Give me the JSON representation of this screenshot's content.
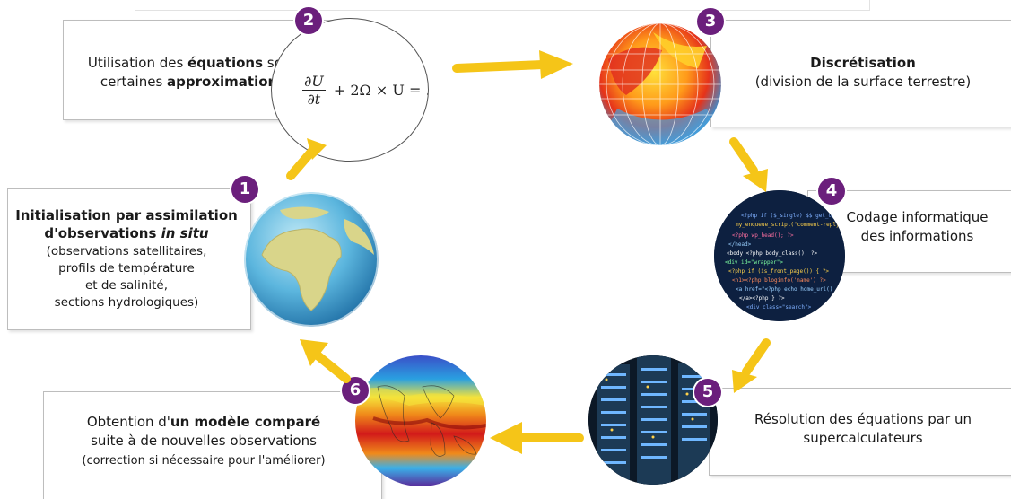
{
  "steps": {
    "s1": {
      "badge": "1",
      "title_line1": "Initialisation par assimilation",
      "title_line2_prefix": "d'observations ",
      "title_line2_italic": "in situ",
      "detail_lines": [
        "(observations satellitaires,",
        "profils de température",
        "et de salinité,",
        "sections hydrologiques)"
      ],
      "image": "earth-globe-image"
    },
    "s2": {
      "badge": "2",
      "line1_prefix": "Utilisation des ",
      "line1_bold": "équations",
      "line1_suffix": " sous",
      "line2_prefix": "certaines ",
      "line2_bold": "approximations",
      "formula": {
        "num": "∂U",
        "den": "∂t",
        "rest": "+ 2Ω × U = ."
      },
      "image": "equation-image"
    },
    "s3": {
      "badge": "3",
      "title": "Discrétisation",
      "subtitle": "(division de la surface terrestre)",
      "image": "grid-globe-image"
    },
    "s4": {
      "badge": "4",
      "line1": "Codage informatique",
      "line2": "des informations",
      "image": "code-screen-image"
    },
    "s5": {
      "badge": "5",
      "line1": "Résolution des équations par un",
      "line2": "supercalculateurs",
      "image": "supercomputer-image"
    },
    "s6": {
      "badge": "6",
      "line1_prefix": "Obtention d'",
      "line1_bold": "un modèle comparé",
      "line2": "suite à de nouvelles observations",
      "line3": "(correction si nécessaire pour l'améliorer)",
      "image": "heat-map-globe-image"
    }
  },
  "colors": {
    "badge": "#6b1f7c",
    "arrow": "#f5c518",
    "border": "#bdbdbd"
  }
}
